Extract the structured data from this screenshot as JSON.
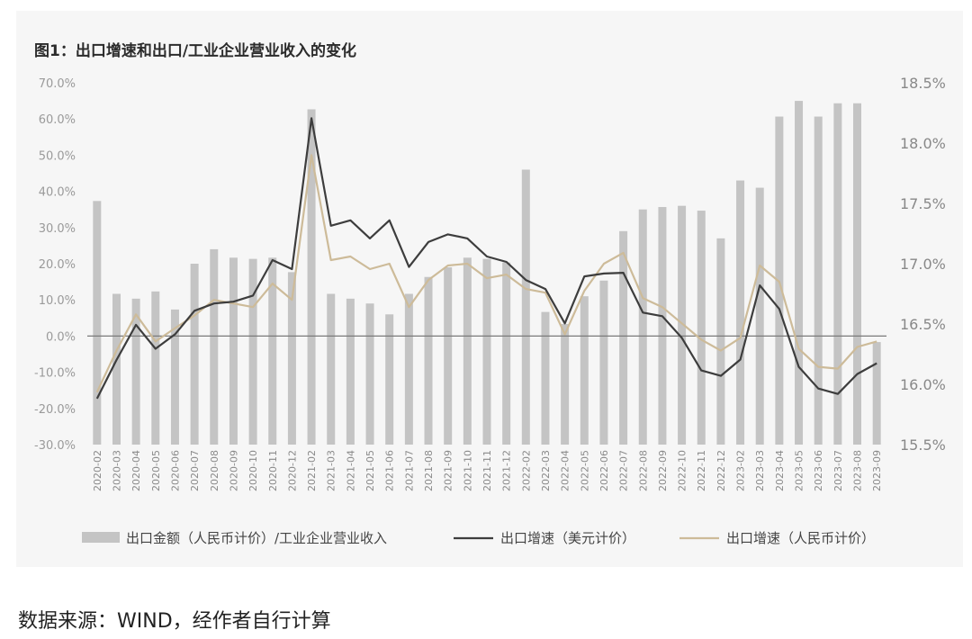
{
  "title": "图1：出口增速和出口/工业企业营业收入的变化",
  "source": "数据来源：WIND，经作者自行计算",
  "colors": {
    "bar": "#c4c4c4",
    "usd_line": "#3d3d3d",
    "rmb_line": "#cdbb99",
    "panel": "#f6f6f6"
  },
  "chart_data": {
    "type": "bar+line",
    "grid": false,
    "legend_position": "bottom",
    "categories": [
      "2020-02",
      "2020-03",
      "2020-04",
      "2020-05",
      "2020-06",
      "2020-07",
      "2020-08",
      "2020-09",
      "2020-10",
      "2020-11",
      "2020-12",
      "2021-02",
      "2021-03",
      "2021-04",
      "2021-05",
      "2021-06",
      "2021-07",
      "2021-08",
      "2021-09",
      "2021-10",
      "2021-11",
      "2021-12",
      "2022-02",
      "2022-03",
      "2022-04",
      "2022-05",
      "2022-06",
      "2022-07",
      "2022-08",
      "2022-09",
      "2022-10",
      "2022-11",
      "2022-12",
      "2023-02",
      "2023-03",
      "2023-04",
      "2023-05",
      "2023-06",
      "2023-07",
      "2023-08",
      "2023-09"
    ],
    "left_axis": {
      "min": -30,
      "max": 70,
      "step": 10,
      "tick_labels": [
        "-30.0%",
        "-20.0%",
        "-10.0%",
        "0.0%",
        "10.0%",
        "20.0%",
        "30.0%",
        "40.0%",
        "50.0%",
        "60.0%",
        "70.0%"
      ]
    },
    "right_axis": {
      "min": 15.5,
      "max": 18.5,
      "step": 0.5,
      "tick_labels": [
        "15.5%",
        "16.0%",
        "16.5%",
        "17.0%",
        "17.5%",
        "18.0%",
        "18.5%"
      ]
    },
    "series": [
      {
        "name": "出口金额（人民币计价）/工业企业营业收入",
        "type": "bar",
        "axis": "right",
        "values": [
          17.52,
          16.75,
          16.71,
          16.77,
          16.62,
          17.0,
          17.12,
          17.05,
          17.04,
          17.05,
          16.93,
          18.28,
          16.75,
          16.71,
          16.67,
          16.58,
          16.75,
          16.89,
          16.97,
          17.05,
          17.04,
          17.01,
          17.78,
          16.6,
          16.5,
          16.73,
          16.86,
          17.27,
          17.45,
          17.47,
          17.48,
          17.44,
          17.21,
          17.69,
          17.63,
          18.22,
          18.35,
          18.22,
          18.33,
          18.33,
          16.35
        ]
      },
      {
        "name": "出口增速（美元计价）",
        "type": "line",
        "axis": "left",
        "values": [
          -17.3,
          -6.6,
          3.1,
          -3.5,
          0.5,
          7.0,
          9.0,
          9.5,
          11.2,
          21.0,
          18.5,
          60.2,
          30.5,
          32.0,
          27.0,
          32.0,
          19.1,
          26.0,
          28.1,
          27.0,
          22.0,
          20.5,
          15.5,
          13.0,
          3.5,
          16.5,
          17.3,
          17.5,
          6.5,
          5.5,
          -0.5,
          -9.5,
          -11.0,
          -6.5,
          14.0,
          7.5,
          -8.5,
          -14.5,
          -16.0,
          -10.5,
          -7.5
        ]
      },
      {
        "name": "出口增速（人民币计价）",
        "type": "line",
        "axis": "left",
        "values": [
          -15.5,
          -4.0,
          6.0,
          -1.5,
          2.2,
          5.7,
          10.0,
          9.0,
          8.0,
          14.5,
          10.0,
          50.0,
          21.0,
          22.0,
          18.5,
          20.0,
          8.0,
          15.5,
          19.5,
          20.0,
          16.0,
          17.0,
          13.0,
          12.0,
          0.5,
          12.5,
          20.0,
          23.0,
          10.5,
          8.0,
          3.5,
          -1.0,
          -4.0,
          -0.5,
          19.5,
          15.0,
          -3.5,
          -8.5,
          -9.0,
          -3.0,
          -1.5
        ]
      }
    ]
  }
}
